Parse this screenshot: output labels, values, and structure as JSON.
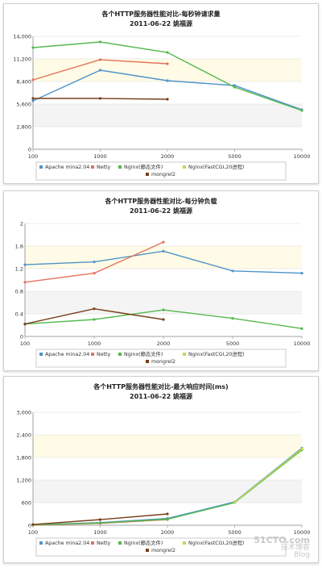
{
  "chart_data": [
    {
      "type": "line",
      "title": "各个HTTP服务器性能对比-每秒钟请求量",
      "subtitle": "2011-06-22 姚福源",
      "x": [
        100,
        1000,
        2000,
        5000,
        10000
      ],
      "x_tick_labels": [
        "100",
        "1000",
        "2000",
        "5000",
        "10000"
      ],
      "ylim": [
        0,
        14000
      ],
      "y_ticks": [
        0,
        2800,
        5600,
        8400,
        11200,
        14000
      ],
      "y_tick_labels": [
        "0",
        "2,800",
        "5,600",
        "8,400",
        "11,200",
        "14,000"
      ],
      "series": [
        {
          "name": "Apache mina2.04",
          "color": "#4f93c7",
          "values": [
            6000,
            9800,
            8500,
            7900,
            4900
          ]
        },
        {
          "name": "Netty",
          "color": "#e3735a",
          "values": [
            8600,
            11100,
            10600,
            null,
            null
          ]
        },
        {
          "name": "Nginx(静态文件)",
          "color": "#55b94f",
          "values": [
            12600,
            13300,
            12000,
            7700,
            4800
          ]
        },
        {
          "name": "Nginx(FastCGI,20进程)",
          "color": "#c3d94a",
          "values": [
            null,
            null,
            null,
            null,
            null
          ]
        },
        {
          "name": "mongrel2",
          "color": "#7a3e1c",
          "values": [
            6300,
            6300,
            6200,
            null,
            null
          ]
        }
      ]
    },
    {
      "type": "line",
      "title": "各个HTTP服务器性能对比-每分钟负载",
      "subtitle": "2011-06-22 姚福源",
      "x": [
        100,
        1000,
        2000,
        5000,
        10000
      ],
      "x_tick_labels": [
        "100",
        "1000",
        "2000",
        "5000",
        "10000"
      ],
      "ylim": [
        0,
        2
      ],
      "y_ticks": [
        0,
        0.4,
        0.8,
        1.2,
        1.6,
        2
      ],
      "y_tick_labels": [
        "0",
        "0.4",
        "0.8",
        "1.2",
        "1.6",
        "2"
      ],
      "series": [
        {
          "name": "Apache mina2.04",
          "color": "#4f93c7",
          "values": [
            1.27,
            1.32,
            1.51,
            1.16,
            1.12
          ]
        },
        {
          "name": "Netty",
          "color": "#e3735a",
          "values": [
            0.96,
            1.12,
            1.67,
            null,
            null
          ]
        },
        {
          "name": "Nginx(静态文件)",
          "color": "#55b94f",
          "values": [
            0.22,
            0.3,
            0.47,
            0.32,
            0.14
          ]
        },
        {
          "name": "Nginx(FastCGI,20进程)",
          "color": "#c3d94a",
          "values": [
            null,
            null,
            null,
            null,
            null
          ]
        },
        {
          "name": "mongrel2",
          "color": "#7a3e1c",
          "values": [
            0.22,
            0.49,
            0.3,
            null,
            null
          ]
        }
      ]
    },
    {
      "type": "line",
      "title": "各个HTTP服务器性能对比-最大响应时间(ms)",
      "subtitle": "2011-06-22 姚福源",
      "x": [
        100,
        1000,
        2000,
        5000,
        10000
      ],
      "x_tick_labels": [
        "100",
        "1000",
        "2000",
        "5000",
        "10000"
      ],
      "ylim": [
        0,
        3000
      ],
      "y_ticks": [
        0,
        600,
        1200,
        1800,
        2400,
        3000
      ],
      "y_tick_labels": [
        "0",
        "600",
        "1,200",
        "1,800",
        "2,400",
        "3,000"
      ],
      "series": [
        {
          "name": "Apache mina2.04",
          "color": "#4f93c7",
          "values": [
            10,
            70,
            180,
            620,
            2050
          ]
        },
        {
          "name": "Netty",
          "color": "#e3735a",
          "values": [
            5,
            50,
            150,
            null,
            null
          ]
        },
        {
          "name": "Nginx(静态文件)",
          "color": "#55b94f",
          "values": [
            8,
            60,
            160,
            600,
            2000
          ]
        },
        {
          "name": "Nginx(FastCGI,20进程)",
          "color": "#c3d94a",
          "values": [
            null,
            null,
            null,
            610,
            2030
          ]
        },
        {
          "name": "mongrel2",
          "color": "#7a3e1c",
          "values": [
            20,
            150,
            300,
            null,
            null
          ]
        }
      ]
    }
  ],
  "watermark": {
    "line1": "51CTO.com",
    "line2": "技术博客",
    "line3": "Blog"
  }
}
